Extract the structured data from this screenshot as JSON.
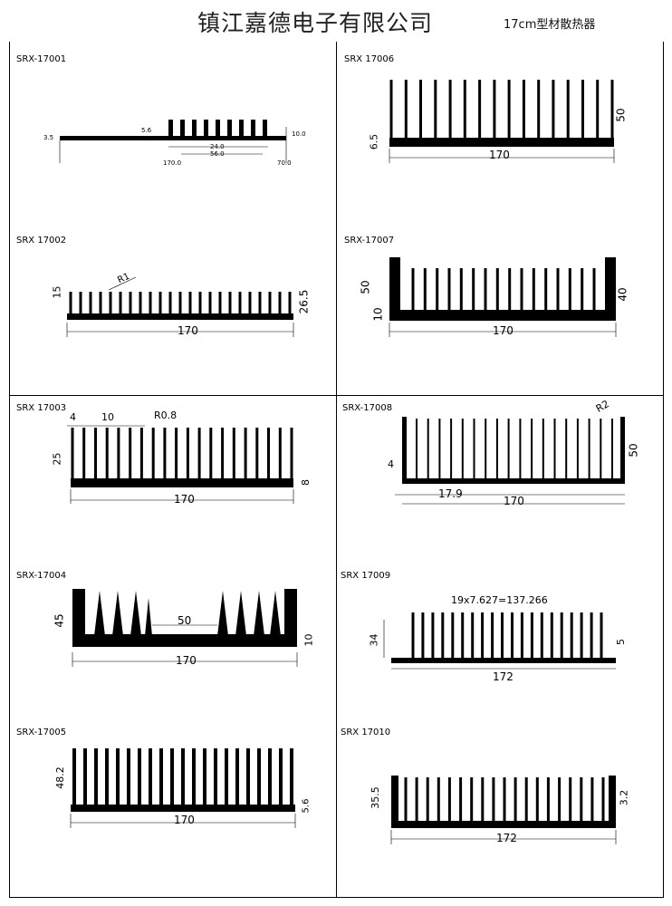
{
  "header": {
    "company": "镇江嘉德电子有限公司",
    "subtitle": "17cm型材散热器"
  },
  "profiles": [
    {
      "code": "SRX-17001",
      "dims": {
        "h": "3.5",
        "a": "5.6",
        "b": "24.0",
        "c": "56.0",
        "d": "170.0",
        "e": "10.0",
        "f": "70.0"
      }
    },
    {
      "code": "SRX 17002",
      "dims": {
        "height": "15",
        "width": "170",
        "base": "26.5",
        "radius": "R1"
      }
    },
    {
      "code": "SRX 17003",
      "dims": {
        "left": "4",
        "pitch": "10",
        "radius": "R0.8",
        "height": "25",
        "width": "170",
        "base": "8"
      }
    },
    {
      "code": "SRX-17004",
      "dims": {
        "height": "45",
        "gap": "50",
        "width": "170",
        "base": "10"
      }
    },
    {
      "code": "SRX-17005",
      "dims": {
        "height": "48.2",
        "width": "170",
        "base": "5.6"
      }
    },
    {
      "code": "SRX 17006",
      "dims": {
        "base": "6.5",
        "width": "170",
        "height": "50"
      }
    },
    {
      "code": "SRX-17007",
      "dims": {
        "total": "50",
        "base": "10",
        "inner": "40",
        "width": "170"
      }
    },
    {
      "code": "SRX-17008",
      "dims": {
        "radius": "R2",
        "base": "4",
        "pitch": "17.9",
        "width": "170",
        "height": "50"
      }
    },
    {
      "code": "SRX 17009",
      "dims": {
        "note": "19x7.627=137.266",
        "height": "34",
        "width": "172",
        "base": "5"
      }
    },
    {
      "code": "SRX 17010",
      "dims": {
        "height": "35.5",
        "width": "172",
        "base": "3.2"
      }
    }
  ]
}
